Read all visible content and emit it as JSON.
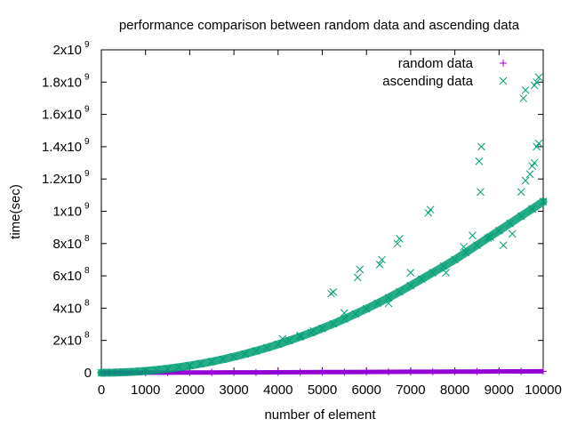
{
  "chart_data": {
    "type": "scatter",
    "title": "performance comparison between random data and ascending data",
    "xlabel": "number of element",
    "ylabel": "time(sec)",
    "xlim": [
      0,
      10000
    ],
    "ylim": [
      0,
      2000000000
    ],
    "grid": false,
    "legend_position": "top-right",
    "x_ticks": [
      {
        "value": 0,
        "label": "0"
      },
      {
        "value": 1000,
        "label": "1000"
      },
      {
        "value": 2000,
        "label": "2000"
      },
      {
        "value": 3000,
        "label": "3000"
      },
      {
        "value": 4000,
        "label": "4000"
      },
      {
        "value": 5000,
        "label": "5000"
      },
      {
        "value": 6000,
        "label": "6000"
      },
      {
        "value": 7000,
        "label": "7000"
      },
      {
        "value": 8000,
        "label": "8000"
      },
      {
        "value": 9000,
        "label": "9000"
      },
      {
        "value": 10000,
        "label": "10000"
      }
    ],
    "y_ticks": [
      {
        "value": 0,
        "mant": "0",
        "exp": ""
      },
      {
        "value": 200000000,
        "mant": "2x10",
        "exp": "8"
      },
      {
        "value": 400000000,
        "mant": "4x10",
        "exp": "8"
      },
      {
        "value": 600000000,
        "mant": "6x10",
        "exp": "8"
      },
      {
        "value": 800000000,
        "mant": "8x10",
        "exp": "8"
      },
      {
        "value": 1000000000,
        "mant": "1x10",
        "exp": "9"
      },
      {
        "value": 1200000000,
        "mant": "1.2x10",
        "exp": "9"
      },
      {
        "value": 1400000000,
        "mant": "1.4x10",
        "exp": "9"
      },
      {
        "value": 1600000000,
        "mant": "1.6x10",
        "exp": "9"
      },
      {
        "value": 1800000000,
        "mant": "1.8x10",
        "exp": "9"
      },
      {
        "value": 2000000000,
        "mant": "2x10",
        "exp": "9"
      }
    ],
    "series": [
      {
        "name": "random data",
        "marker": "plus",
        "color": "#9400d3",
        "x": [
          0,
          500,
          1000,
          1500,
          2000,
          2500,
          3000,
          3500,
          4000,
          4500,
          5000,
          5500,
          6000,
          6500,
          7000,
          7500,
          8000,
          8500,
          9000,
          9500,
          10000
        ],
        "y": [
          0,
          200000,
          500000,
          800000,
          1200000,
          1600000,
          2000000,
          2400000,
          2800000,
          3300000,
          3800000,
          4300000,
          4800000,
          5300000,
          5800000,
          6300000,
          6900000,
          7400000,
          8000000,
          8500000,
          9000000
        ]
      },
      {
        "name": "ascending data",
        "marker": "cross",
        "color": "#009e73",
        "x": [
          0,
          250,
          500,
          750,
          1000,
          1250,
          1500,
          1750,
          2000,
          2250,
          2500,
          2750,
          3000,
          3250,
          3500,
          3750,
          4000,
          4250,
          4500,
          4750,
          5000,
          5250,
          5500,
          5750,
          6000,
          6250,
          6500,
          6750,
          7000,
          7250,
          7500,
          7750,
          8000,
          8250,
          8500,
          8750,
          9000,
          9250,
          9500,
          9750,
          10000,
          5200,
          5250,
          5800,
          5850,
          6300,
          6350,
          6700,
          6750,
          7400,
          7450,
          8550,
          8600,
          8580,
          9550,
          9600,
          9800,
          9850,
          9900,
          4100,
          4500,
          4800,
          5500,
          6500,
          7000,
          7800,
          8200,
          8400,
          8800,
          9100,
          9300,
          9500,
          9600,
          9700,
          9750,
          9800,
          9850,
          9900
        ],
        "y": [
          0,
          700000,
          2800000,
          6300000,
          11000000,
          17000000,
          25000000,
          34000000,
          44000000,
          56000000,
          69000000,
          83000000,
          99000000,
          116000000,
          135000000,
          155000000,
          176000000,
          199000000,
          223000000,
          248000000,
          275000000,
          303000000,
          333000000,
          364000000,
          396000000,
          430000000,
          465000000,
          502000000,
          540000000,
          580000000,
          620000000,
          660000000,
          700000000,
          745000000,
          790000000,
          835000000,
          880000000,
          925000000,
          970000000,
          1015000000,
          1060000000,
          490000000,
          500000000,
          590000000,
          640000000,
          670000000,
          700000000,
          800000000,
          830000000,
          990000000,
          1010000000,
          1310000000,
          1400000000,
          1120000000,
          1700000000,
          1750000000,
          1780000000,
          1800000000,
          1830000000,
          210000000,
          230000000,
          260000000,
          370000000,
          430000000,
          620000000,
          620000000,
          780000000,
          850000000,
          840000000,
          790000000,
          860000000,
          1120000000,
          1190000000,
          1230000000,
          1280000000,
          1300000000,
          1400000000,
          1420000000
        ]
      }
    ]
  }
}
